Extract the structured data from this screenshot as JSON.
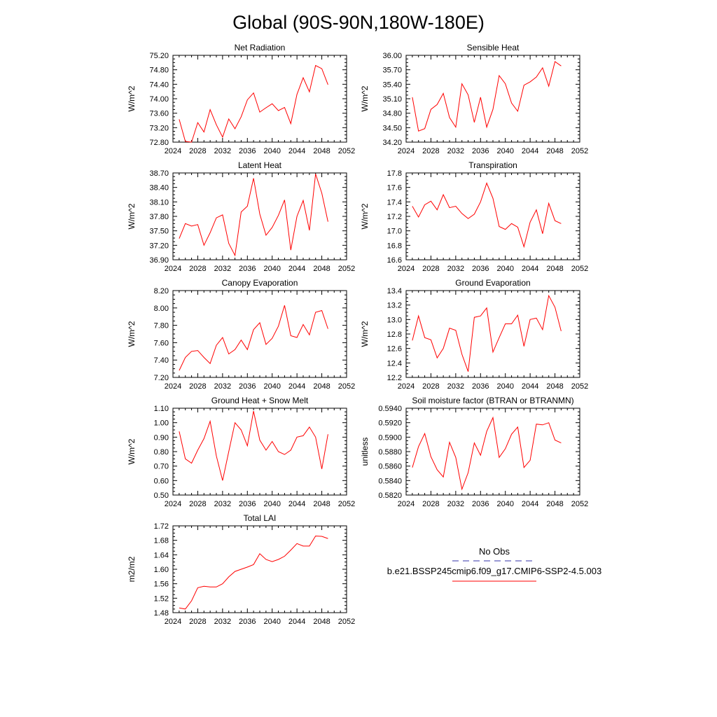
{
  "figure_title": "Global (90S-90N,180W-180E)",
  "legend": {
    "obs_label": "No Obs",
    "obs_color": "#3333aa",
    "case_label": "b.e21.BSSP245cmip6.f09_g17.CMIP6-SSP2-4.5.003",
    "case_color": "#ff0000"
  },
  "chart_data": [
    {
      "type": "line",
      "title": "Net Radiation",
      "ylabel": "W/m^2",
      "xlim": [
        2024,
        2052
      ],
      "xticks": [
        "2024",
        "2028",
        "2032",
        "2036",
        "2040",
        "2044",
        "2048",
        "2052"
      ],
      "ylim": [
        72.8,
        75.2
      ],
      "yticks": [
        "72.80",
        "73.20",
        "73.60",
        "74.00",
        "74.40",
        "74.80",
        "75.20"
      ],
      "x": [
        2025,
        2026,
        2027,
        2028,
        2029,
        2030,
        2031,
        2032,
        2033,
        2034,
        2035,
        2036,
        2037,
        2038,
        2039,
        2040,
        2041,
        2042,
        2043,
        2044,
        2045,
        2046,
        2047,
        2048,
        2049
      ],
      "values": [
        73.43,
        72.82,
        72.8,
        73.34,
        73.08,
        73.7,
        73.28,
        72.94,
        73.44,
        73.17,
        73.5,
        73.97,
        74.16,
        73.63,
        73.75,
        73.86,
        73.67,
        73.76,
        73.31,
        74.12,
        74.58,
        74.19,
        74.92,
        74.83,
        74.39
      ]
    },
    {
      "type": "line",
      "title": "Sensible Heat",
      "ylabel": "W/m^2",
      "xlim": [
        2024,
        2052
      ],
      "xticks": [
        "2024",
        "2028",
        "2032",
        "2036",
        "2040",
        "2044",
        "2048",
        "2052"
      ],
      "ylim": [
        34.2,
        36.0
      ],
      "yticks": [
        "34.20",
        "34.50",
        "34.80",
        "35.10",
        "35.40",
        "35.70",
        "36.00"
      ],
      "x": [
        2025,
        2026,
        2027,
        2028,
        2029,
        2030,
        2031,
        2032,
        2033,
        2034,
        2035,
        2036,
        2037,
        2038,
        2039,
        2040,
        2041,
        2042,
        2043,
        2044,
        2045,
        2046,
        2047,
        2048,
        2049
      ],
      "values": [
        35.13,
        34.43,
        34.48,
        34.88,
        34.98,
        35.21,
        34.71,
        34.51,
        35.41,
        35.18,
        34.61,
        35.13,
        34.51,
        34.88,
        35.58,
        35.41,
        35.01,
        34.84,
        35.38,
        35.45,
        35.55,
        35.74,
        35.36,
        35.87,
        35.78
      ]
    },
    {
      "type": "line",
      "title": "Latent Heat",
      "ylabel": "W/m^2",
      "xlim": [
        2024,
        2052
      ],
      "xticks": [
        "2024",
        "2028",
        "2032",
        "2036",
        "2040",
        "2044",
        "2048",
        "2052"
      ],
      "ylim": [
        36.9,
        38.7
      ],
      "yticks": [
        "36.90",
        "37.20",
        "37.50",
        "37.80",
        "38.10",
        "38.40",
        "38.70"
      ],
      "x": [
        2025,
        2026,
        2027,
        2028,
        2029,
        2030,
        2031,
        2032,
        2033,
        2034,
        2035,
        2036,
        2037,
        2038,
        2039,
        2040,
        2041,
        2042,
        2043,
        2044,
        2045,
        2046,
        2047,
        2048,
        2049
      ],
      "values": [
        37.34,
        37.65,
        37.6,
        37.63,
        37.2,
        37.46,
        37.77,
        37.83,
        37.24,
        36.99,
        37.89,
        38.01,
        38.59,
        37.85,
        37.41,
        37.57,
        37.82,
        38.14,
        37.1,
        37.8,
        38.13,
        37.51,
        38.68,
        38.28,
        37.69
      ]
    },
    {
      "type": "line",
      "title": "Transpiration",
      "ylabel": "W/m^2",
      "xlim": [
        2024,
        2052
      ],
      "xticks": [
        "2024",
        "2028",
        "2032",
        "2036",
        "2040",
        "2044",
        "2048",
        "2052"
      ],
      "ylim": [
        16.6,
        17.8
      ],
      "yticks": [
        "16.6",
        "16.8",
        "17.0",
        "17.2",
        "17.4",
        "17.6",
        "17.8"
      ],
      "x": [
        2025,
        2026,
        2027,
        2028,
        2029,
        2030,
        2031,
        2032,
        2033,
        2034,
        2035,
        2036,
        2037,
        2038,
        2039,
        2040,
        2041,
        2042,
        2043,
        2044,
        2045,
        2046,
        2047,
        2048,
        2049
      ],
      "values": [
        17.34,
        17.19,
        17.36,
        17.41,
        17.29,
        17.5,
        17.32,
        17.34,
        17.24,
        17.17,
        17.23,
        17.4,
        17.66,
        17.45,
        17.06,
        17.02,
        17.1,
        17.05,
        16.78,
        17.12,
        17.29,
        16.96,
        17.38,
        17.14,
        17.1
      ]
    },
    {
      "type": "line",
      "title": "Canopy Evaporation",
      "ylabel": "W/m^2",
      "xlim": [
        2024,
        2052
      ],
      "xticks": [
        "2024",
        "2028",
        "2032",
        "2036",
        "2040",
        "2044",
        "2048",
        "2052"
      ],
      "ylim": [
        7.2,
        8.2
      ],
      "yticks": [
        "7.20",
        "7.40",
        "7.60",
        "7.80",
        "8.00",
        "8.20"
      ],
      "x": [
        2025,
        2026,
        2027,
        2028,
        2029,
        2030,
        2031,
        2032,
        2033,
        2034,
        2035,
        2036,
        2037,
        2038,
        2039,
        2040,
        2041,
        2042,
        2043,
        2044,
        2045,
        2046,
        2047,
        2048,
        2049
      ],
      "values": [
        7.28,
        7.43,
        7.5,
        7.51,
        7.43,
        7.36,
        7.57,
        7.66,
        7.47,
        7.52,
        7.63,
        7.52,
        7.75,
        7.83,
        7.58,
        7.65,
        7.79,
        8.03,
        7.68,
        7.66,
        7.81,
        7.69,
        7.95,
        7.97,
        7.76
      ]
    },
    {
      "type": "line",
      "title": "Ground Evaporation",
      "ylabel": "W/m^2",
      "xlim": [
        2024,
        2052
      ],
      "xticks": [
        "2024",
        "2028",
        "2032",
        "2036",
        "2040",
        "2044",
        "2048",
        "2052"
      ],
      "ylim": [
        12.2,
        13.4
      ],
      "yticks": [
        "12.2",
        "12.4",
        "12.6",
        "12.8",
        "13.0",
        "13.2",
        "13.4"
      ],
      "x": [
        2025,
        2026,
        2027,
        2028,
        2029,
        2030,
        2031,
        2032,
        2033,
        2034,
        2035,
        2036,
        2037,
        2038,
        2039,
        2040,
        2041,
        2042,
        2043,
        2044,
        2045,
        2046,
        2047,
        2048,
        2049
      ],
      "values": [
        12.71,
        13.05,
        12.75,
        12.72,
        12.47,
        12.6,
        12.88,
        12.85,
        12.52,
        12.28,
        13.03,
        13.05,
        13.16,
        12.55,
        12.75,
        12.94,
        12.94,
        13.06,
        12.63,
        13.0,
        13.02,
        12.86,
        13.33,
        13.17,
        12.84
      ]
    },
    {
      "type": "line",
      "title": "Ground Heat + Snow Melt",
      "ylabel": "W/m^2",
      "xlim": [
        2024,
        2052
      ],
      "xticks": [
        "2024",
        "2028",
        "2032",
        "2036",
        "2040",
        "2044",
        "2048",
        "2052"
      ],
      "ylim": [
        0.5,
        1.1
      ],
      "yticks": [
        "0.50",
        "0.60",
        "0.70",
        "0.80",
        "0.90",
        "1.00",
        "1.10"
      ],
      "x": [
        2025,
        2026,
        2027,
        2028,
        2029,
        2030,
        2031,
        2032,
        2033,
        2034,
        2035,
        2036,
        2037,
        2038,
        2039,
        2040,
        2041,
        2042,
        2043,
        2044,
        2045,
        2046,
        2047,
        2048,
        2049
      ],
      "values": [
        0.94,
        0.75,
        0.72,
        0.81,
        0.89,
        1.01,
        0.77,
        0.6,
        0.8,
        1.0,
        0.95,
        0.84,
        1.08,
        0.88,
        0.81,
        0.87,
        0.8,
        0.78,
        0.81,
        0.9,
        0.91,
        0.97,
        0.9,
        0.68,
        0.92
      ]
    },
    {
      "type": "line",
      "title": "Soil moisture factor (BTRAN or BTRANMN)",
      "ylabel": "unitless",
      "xlim": [
        2024,
        2052
      ],
      "xticks": [
        "2024",
        "2028",
        "2032",
        "2036",
        "2040",
        "2044",
        "2048",
        "2052"
      ],
      "ylim": [
        0.582,
        0.594
      ],
      "yticks": [
        "0.5820",
        "0.5840",
        "0.5860",
        "0.5880",
        "0.5900",
        "0.5920",
        "0.5940"
      ],
      "x": [
        2025,
        2026,
        2027,
        2028,
        2029,
        2030,
        2031,
        2032,
        2033,
        2034,
        2035,
        2036,
        2037,
        2038,
        2039,
        2040,
        2041,
        2042,
        2043,
        2044,
        2045,
        2046,
        2047,
        2048,
        2049
      ],
      "values": [
        0.5858,
        0.5887,
        0.5905,
        0.5873,
        0.5855,
        0.5845,
        0.5893,
        0.5872,
        0.5828,
        0.5851,
        0.5892,
        0.5875,
        0.5908,
        0.5927,
        0.5872,
        0.5884,
        0.5904,
        0.5914,
        0.5858,
        0.5868,
        0.5918,
        0.5917,
        0.592,
        0.5896,
        0.5892
      ]
    },
    {
      "type": "line",
      "title": "Total LAI",
      "ylabel": "m2/m2",
      "xlim": [
        2024,
        2052
      ],
      "xticks": [
        "2024",
        "2028",
        "2032",
        "2036",
        "2040",
        "2044",
        "2048",
        "2052"
      ],
      "ylim": [
        1.48,
        1.72
      ],
      "yticks": [
        "1.48",
        "1.52",
        "1.56",
        "1.60",
        "1.64",
        "1.68",
        "1.72"
      ],
      "x": [
        2025,
        2026,
        2027,
        2028,
        2029,
        2030,
        2031,
        2032,
        2033,
        2034,
        2035,
        2036,
        2037,
        2038,
        2039,
        2040,
        2041,
        2042,
        2043,
        2044,
        2045,
        2046,
        2047,
        2048,
        2049
      ],
      "values": [
        1.493,
        1.49,
        1.513,
        1.549,
        1.553,
        1.551,
        1.551,
        1.56,
        1.579,
        1.594,
        1.6,
        1.606,
        1.613,
        1.643,
        1.627,
        1.621,
        1.627,
        1.636,
        1.653,
        1.671,
        1.664,
        1.664,
        1.692,
        1.691,
        1.685
      ]
    }
  ]
}
